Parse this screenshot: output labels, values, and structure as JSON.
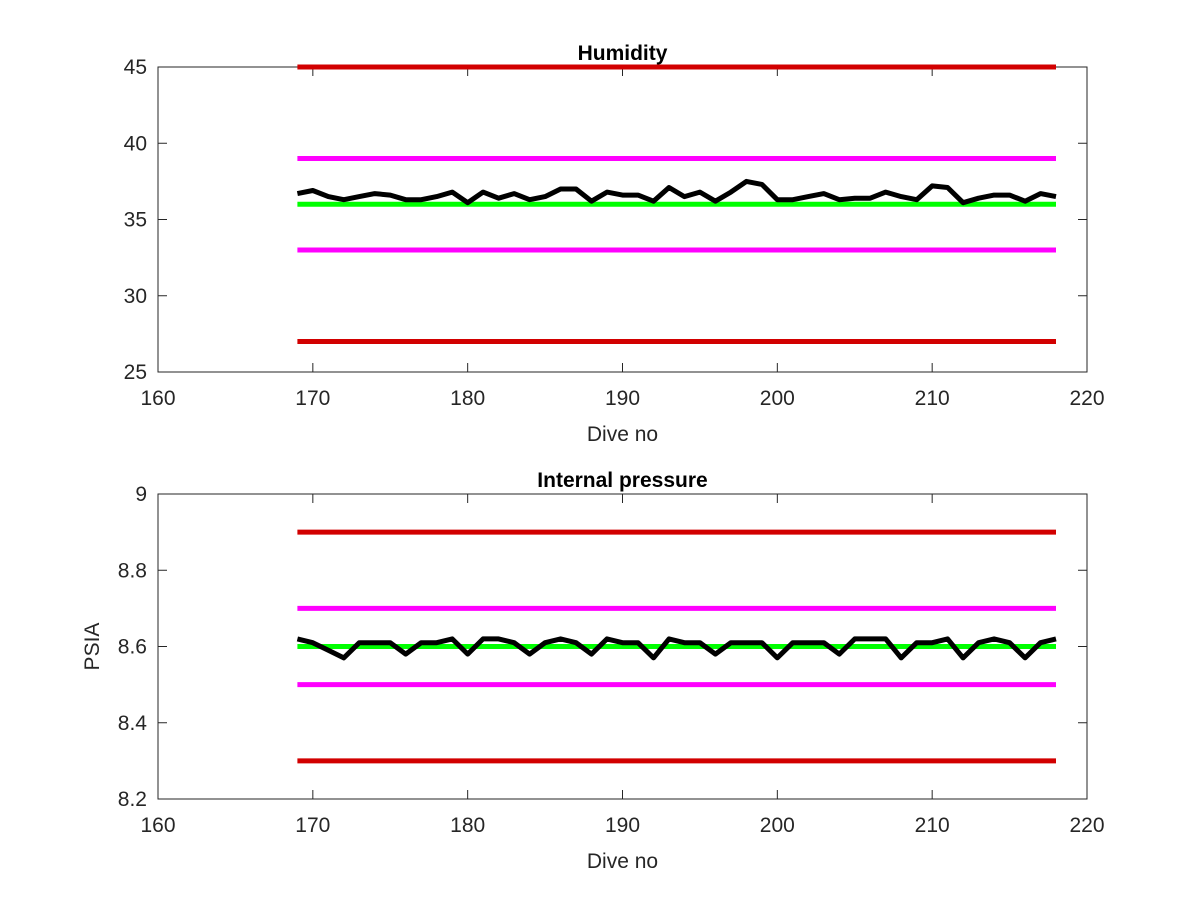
{
  "chart_data": [
    {
      "type": "line",
      "title": "Humidity",
      "xlabel": "Dive no",
      "ylabel": "",
      "xlim": [
        160,
        220
      ],
      "ylim": [
        25,
        45
      ],
      "xticks": [
        "160",
        "170",
        "180",
        "190",
        "200",
        "210",
        "220"
      ],
      "yticks": [
        "25",
        "30",
        "35",
        "40",
        "45"
      ],
      "grid": false,
      "series": [
        {
          "color": "#d20000",
          "x": [
            169,
            218
          ],
          "values": [
            45,
            45
          ]
        },
        {
          "color": "#ff00ff",
          "x": [
            169,
            218
          ],
          "values": [
            39,
            39
          ]
        },
        {
          "color": "#00ff00",
          "x": [
            169,
            218
          ],
          "values": [
            36,
            36
          ]
        },
        {
          "color": "#ff00ff",
          "x": [
            169,
            218
          ],
          "values": [
            33,
            33
          ]
        },
        {
          "color": "#d20000",
          "x": [
            169,
            218
          ],
          "values": [
            27,
            27
          ]
        },
        {
          "color": "#000000",
          "x": [
            169,
            170,
            171,
            172,
            173,
            174,
            175,
            176,
            177,
            178,
            179,
            180,
            181,
            182,
            183,
            184,
            185,
            186,
            187,
            188,
            189,
            190,
            191,
            192,
            193,
            194,
            195,
            196,
            197,
            198,
            199,
            200,
            201,
            202,
            203,
            204,
            205,
            206,
            207,
            208,
            209,
            210,
            211,
            212,
            213,
            214,
            215,
            216,
            217,
            218
          ],
          "values": [
            36.7,
            36.9,
            36.5,
            36.3,
            36.5,
            36.7,
            36.6,
            36.3,
            36.3,
            36.5,
            36.8,
            36.1,
            36.8,
            36.4,
            36.7,
            36.3,
            36.5,
            37.0,
            37.0,
            36.2,
            36.8,
            36.6,
            36.6,
            36.2,
            37.1,
            36.5,
            36.8,
            36.2,
            36.8,
            37.5,
            37.3,
            36.3,
            36.3,
            36.5,
            36.7,
            36.3,
            36.4,
            36.4,
            36.8,
            36.5,
            36.3,
            37.2,
            37.1,
            36.1,
            36.4,
            36.6,
            36.6,
            36.2,
            36.7,
            36.5
          ]
        }
      ]
    },
    {
      "type": "line",
      "title": "Internal pressure",
      "xlabel": "Dive no",
      "ylabel": "PSIA",
      "xlim": [
        160,
        220
      ],
      "ylim": [
        8.2,
        9
      ],
      "xticks": [
        "160",
        "170",
        "180",
        "190",
        "200",
        "210",
        "220"
      ],
      "yticks": [
        "8.2",
        "8.4",
        "8.6",
        "8.8",
        "9"
      ],
      "grid": false,
      "series": [
        {
          "color": "#d20000",
          "x": [
            169,
            218
          ],
          "values": [
            8.9,
            8.9
          ]
        },
        {
          "color": "#ff00ff",
          "x": [
            169,
            218
          ],
          "values": [
            8.7,
            8.7
          ]
        },
        {
          "color": "#00ff00",
          "x": [
            169,
            218
          ],
          "values": [
            8.6,
            8.6
          ]
        },
        {
          "color": "#ff00ff",
          "x": [
            169,
            218
          ],
          "values": [
            8.5,
            8.5
          ]
        },
        {
          "color": "#d20000",
          "x": [
            169,
            218
          ],
          "values": [
            8.3,
            8.3
          ]
        },
        {
          "color": "#000000",
          "x": [
            169,
            170,
            171,
            172,
            173,
            174,
            175,
            176,
            177,
            178,
            179,
            180,
            181,
            182,
            183,
            184,
            185,
            186,
            187,
            188,
            189,
            190,
            191,
            192,
            193,
            194,
            195,
            196,
            197,
            198,
            199,
            200,
            201,
            202,
            203,
            204,
            205,
            206,
            207,
            208,
            209,
            210,
            211,
            212,
            213,
            214,
            215,
            216,
            217,
            218
          ],
          "values": [
            8.62,
            8.61,
            8.59,
            8.57,
            8.61,
            8.61,
            8.61,
            8.58,
            8.61,
            8.61,
            8.62,
            8.58,
            8.62,
            8.62,
            8.61,
            8.58,
            8.61,
            8.62,
            8.61,
            8.58,
            8.62,
            8.61,
            8.61,
            8.57,
            8.62,
            8.61,
            8.61,
            8.58,
            8.61,
            8.61,
            8.61,
            8.57,
            8.61,
            8.61,
            8.61,
            8.58,
            8.62,
            8.62,
            8.62,
            8.57,
            8.61,
            8.61,
            8.62,
            8.57,
            8.61,
            8.62,
            8.61,
            8.57,
            8.61,
            8.62
          ]
        }
      ]
    }
  ]
}
